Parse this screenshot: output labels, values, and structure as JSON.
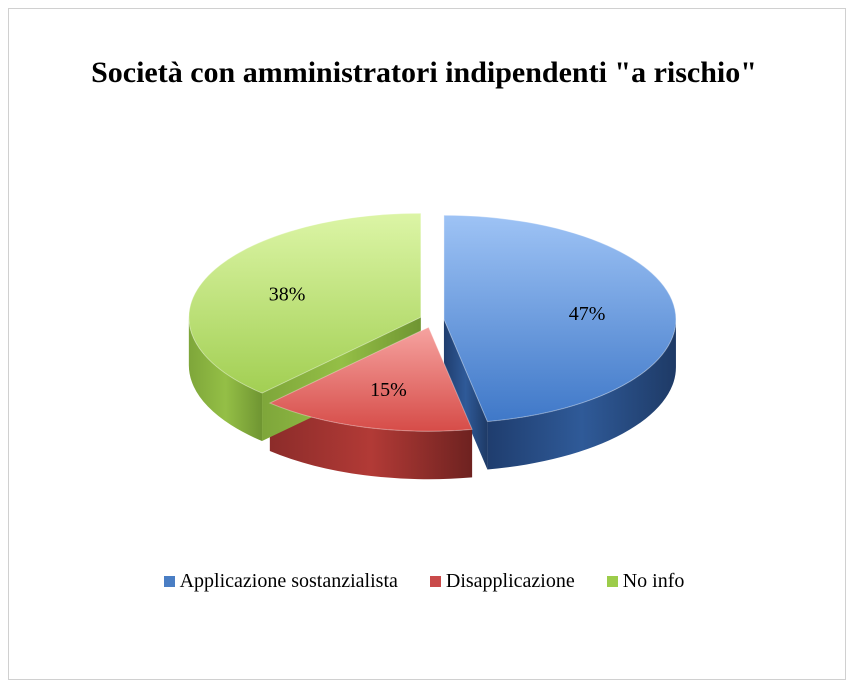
{
  "chart_data": {
    "type": "pie",
    "title": "Società con amministratori indipendenti \"a rischio\"",
    "categories": [
      "Applicazione sostanzialista",
      "Disapplicazione",
      "No info"
    ],
    "values": [
      47,
      15,
      38
    ],
    "value_labels": [
      "47%",
      "15%",
      "38%"
    ],
    "legend_position": "bottom",
    "exploded": true,
    "three_d": true,
    "colors": [
      "#4a7ec4",
      "#c94a4a",
      "#9ccc4a"
    ]
  }
}
